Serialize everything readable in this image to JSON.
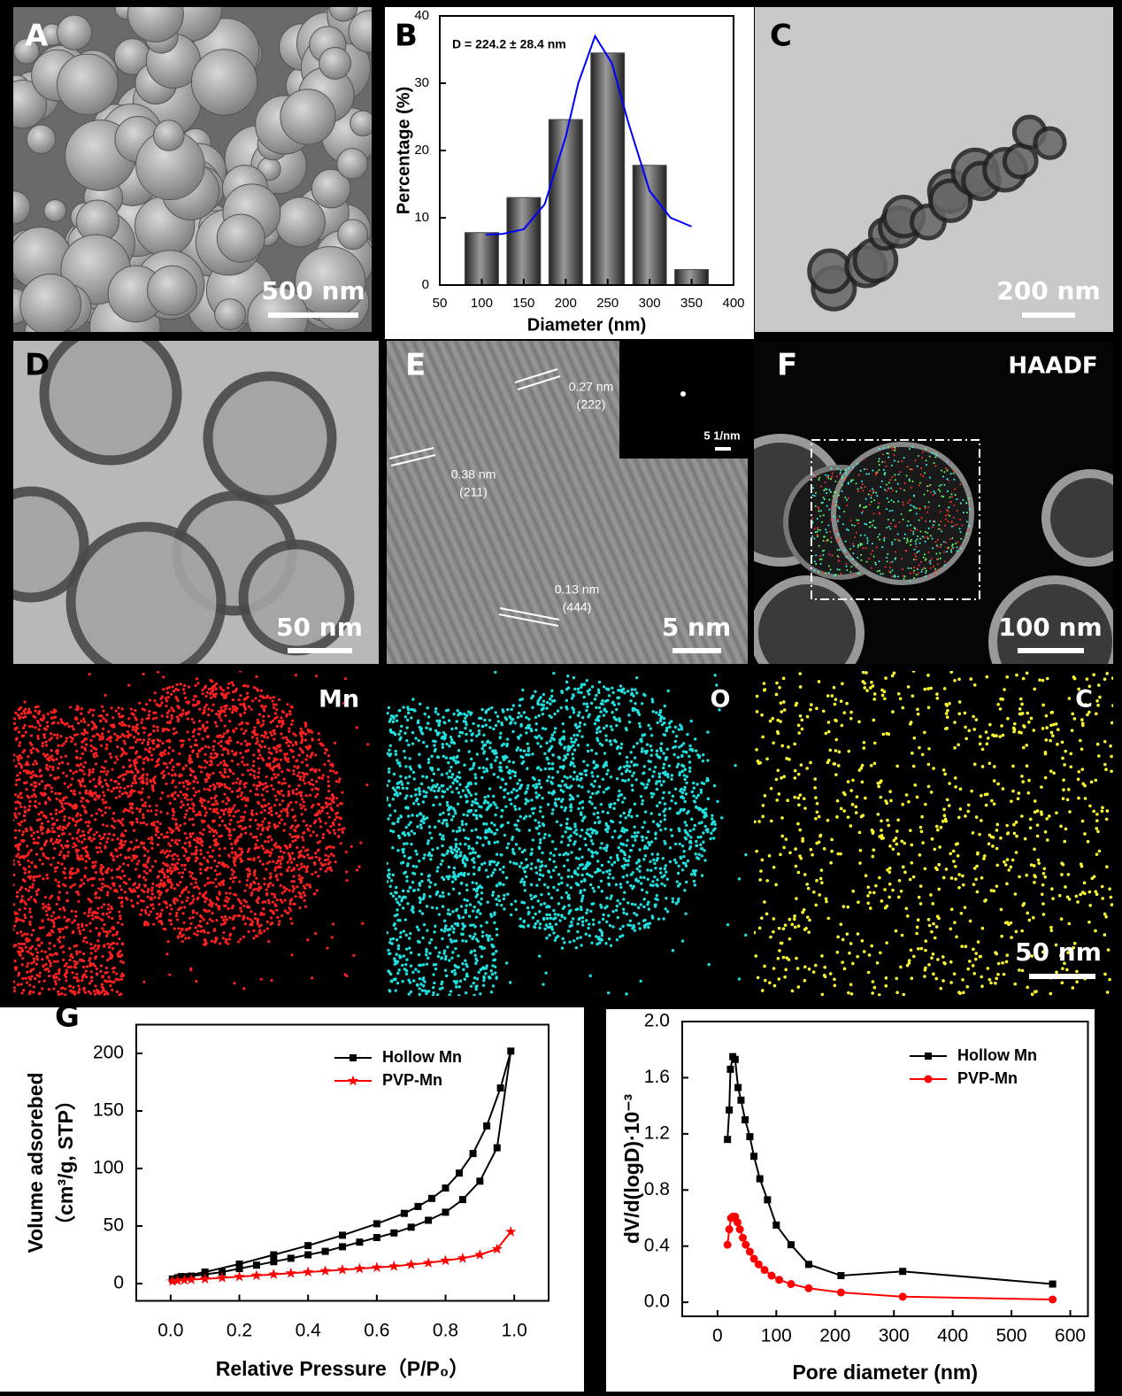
{
  "panels": [
    {
      "label": "A",
      "scale_bar": "500 nm"
    },
    {
      "label": "C",
      "scale_bar": "200 nm"
    },
    {
      "label": "D",
      "scale_bar": "50 nm"
    },
    {
      "label": "E",
      "scale_bar": "5 nm",
      "inset_scale_bar": "5 1/nm",
      "annotations": [
        "0.27 nm",
        "(222)",
        "0.38 nm",
        "(211)",
        "0.13 nm",
        "(444)"
      ]
    },
    {
      "label": "F",
      "scale_bar": "100 nm",
      "detector": "HAADF"
    },
    {
      "elements": [
        "Mn",
        "O",
        "C"
      ],
      "scale_bar": "50 nm"
    }
  ],
  "chart_data": [
    {
      "type": "bar",
      "panel_label": "B",
      "annotation": "D = 224.2 ± 28.4 nm",
      "x_label": "Diameter (nm)",
      "y_label": "Percentage (%)",
      "x": [
        100,
        150,
        200,
        250,
        300,
        350
      ],
      "values": [
        7.8,
        13,
        24.6,
        34.5,
        17.8,
        2.3
      ],
      "color": "#4a4a4a",
      "fit": {
        "color": "#0000ff",
        "x": [
          105,
          125,
          150,
          175,
          200,
          215,
          235,
          255,
          275,
          300,
          325,
          350
        ],
        "values": [
          7.5,
          7.6,
          8.3,
          12,
          22,
          30,
          37,
          33,
          24,
          14,
          10,
          8.7
        ]
      },
      "xlim": [
        50,
        400
      ],
      "xticks": [
        50,
        100,
        150,
        200,
        250,
        300,
        350,
        400
      ],
      "ylim": [
        0,
        40
      ],
      "yticks": [
        0,
        10,
        20,
        30,
        40
      ]
    },
    {
      "type": "line",
      "panel_label": "G",
      "x_label": "Relative Pressure（P/P₀）",
      "y_label": [
        "Volume adsorebed",
        "（cm³/g, STP）"
      ],
      "series": [
        {
          "name": "Hollow Mn",
          "color": "#000000",
          "marker": "square",
          "x": [
            0.005,
            0.02,
            0.04,
            0.06,
            0.1,
            0.15,
            0.2,
            0.25,
            0.3,
            0.35,
            0.4,
            0.45,
            0.5,
            0.55,
            0.6,
            0.65,
            0.7,
            0.75,
            0.8,
            0.85,
            0.9,
            0.95,
            0.99,
            0.96,
            0.92,
            0.88,
            0.84,
            0.8,
            0.76,
            0.72,
            0.68,
            0.6,
            0.5,
            0.4,
            0.3,
            0.2,
            0.1,
            0.03
          ],
          "values": [
            4,
            5,
            6,
            6.5,
            8,
            10,
            13,
            16,
            19,
            22,
            25,
            28,
            32,
            36,
            40,
            44,
            49,
            55,
            62,
            73,
            89,
            118,
            202,
            170,
            137,
            113,
            96,
            83,
            74,
            67,
            61,
            52,
            42,
            33,
            25,
            17,
            10,
            6
          ]
        },
        {
          "name": "PVP-Mn",
          "color": "#ff0000",
          "marker": "star",
          "x": [
            0.005,
            0.02,
            0.04,
            0.06,
            0.1,
            0.15,
            0.2,
            0.25,
            0.3,
            0.35,
            0.4,
            0.45,
            0.5,
            0.55,
            0.6,
            0.65,
            0.7,
            0.75,
            0.8,
            0.85,
            0.9,
            0.95,
            0.99
          ],
          "values": [
            2,
            2.5,
            3,
            3.5,
            4,
            5,
            6,
            7,
            8,
            9,
            10,
            11,
            12,
            13,
            14,
            15,
            16.5,
            18,
            20,
            22,
            25,
            30,
            45
          ]
        }
      ],
      "xlim": [
        -0.1,
        1.1
      ],
      "xticks": [
        {
          "value": 0,
          "label": "0.0"
        },
        0.2,
        0.4,
        0.6,
        0.8,
        {
          "value": 1,
          "label": "1.0"
        }
      ],
      "ylim": [
        -15,
        225
      ],
      "yticks": [
        0,
        50,
        100,
        150,
        200
      ],
      "legend": "upper right"
    },
    {
      "type": "line",
      "x_label": "Pore diameter (nm)",
      "y_label": [
        "dV/d(logD)·10⁻³"
      ],
      "series": [
        {
          "name": "Hollow Mn",
          "color": "#000000",
          "marker": "square",
          "x": [
            17,
            20,
            22,
            26,
            30,
            35,
            40,
            47,
            55,
            62,
            72,
            85,
            100,
            125,
            155,
            210,
            315,
            570
          ],
          "values": [
            1.16,
            1.37,
            1.66,
            1.75,
            1.73,
            1.53,
            1.44,
            1.3,
            1.18,
            1.04,
            0.88,
            0.73,
            0.55,
            0.41,
            0.27,
            0.19,
            0.22,
            0.13
          ]
        },
        {
          "name": "PVP-Mn",
          "color": "#ff0000",
          "marker": "circle",
          "x": [
            17,
            20,
            23,
            26,
            30,
            34,
            38,
            43,
            48,
            55,
            62,
            70,
            80,
            92,
            105,
            125,
            155,
            210,
            315,
            570
          ],
          "values": [
            0.41,
            0.52,
            0.6,
            0.61,
            0.61,
            0.57,
            0.52,
            0.46,
            0.41,
            0.36,
            0.31,
            0.27,
            0.23,
            0.19,
            0.16,
            0.13,
            0.1,
            0.07,
            0.04,
            0.02
          ]
        }
      ],
      "xlim": [
        -60,
        630
      ],
      "xticks": [
        0,
        100,
        200,
        300,
        400,
        500,
        600
      ],
      "ylim": [
        -0.1,
        2.0
      ],
      "yticks": [
        {
          "value": 0,
          "label": "0.0"
        },
        0.4,
        0.8,
        1.2,
        1.6,
        {
          "value": 2,
          "label": "2.0"
        }
      ],
      "legend": "upper right"
    }
  ]
}
